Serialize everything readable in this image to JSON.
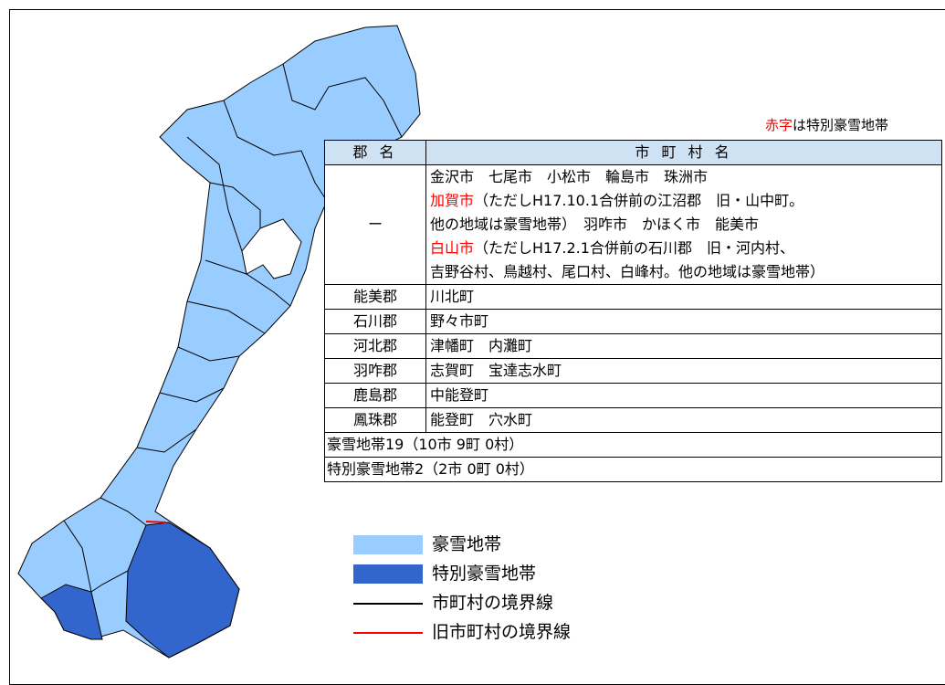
{
  "note": {
    "segments": [
      {
        "text": "赤字",
        "highlight": true
      },
      {
        "text": "は特別豪雪地帯",
        "highlight": false
      }
    ]
  },
  "table": {
    "header": [
      "郡 名",
      "市 町 村 名"
    ],
    "rows": [
      {
        "gun": "ー",
        "lines": [
          [
            {
              "text": "金沢市　七尾市　小松市　輪島市　珠洲市",
              "highlight": false
            }
          ],
          [
            {
              "text": "加賀市",
              "highlight": true
            },
            {
              "text": "（ただしH17.10.1合併前の江沼郡　旧・山中町。",
              "highlight": false
            }
          ],
          [
            {
              "text": "他の地域は豪雪地帯）　羽咋市　かほく市　能美市",
              "highlight": false
            }
          ],
          [
            {
              "text": "白山市",
              "highlight": true
            },
            {
              "text": "（ただしH17.2.1合併前の石川郡　旧・河内村、",
              "highlight": false
            }
          ],
          [
            {
              "text": "吉野谷村、鳥越村、尾口村、白峰村。他の地域は豪雪地帯）",
              "highlight": false
            }
          ]
        ]
      },
      {
        "gun": "能美郡",
        "lines": [
          [
            {
              "text": "川北町",
              "highlight": false
            }
          ]
        ]
      },
      {
        "gun": "石川郡",
        "lines": [
          [
            {
              "text": "野々市町",
              "highlight": false
            }
          ]
        ]
      },
      {
        "gun": "河北郡",
        "lines": [
          [
            {
              "text": "津幡町　内灘町",
              "highlight": false
            }
          ]
        ]
      },
      {
        "gun": "羽咋郡",
        "lines": [
          [
            {
              "text": "志賀町　宝達志水町",
              "highlight": false
            }
          ]
        ]
      },
      {
        "gun": "鹿島郡",
        "lines": [
          [
            {
              "text": "中能登町",
              "highlight": false
            }
          ]
        ]
      },
      {
        "gun": "鳳珠郡",
        "lines": [
          [
            {
              "text": "能登町　穴水町",
              "highlight": false
            }
          ]
        ]
      }
    ],
    "totals": [
      "豪雪地帯19（10市 9町 0村）",
      "特別豪雪地帯2（2市 0町 0村）"
    ]
  },
  "legend": [
    "豪雪地帯",
    "特別豪雪地帯",
    "市町村の境界線",
    "旧市町村の境界線"
  ]
}
